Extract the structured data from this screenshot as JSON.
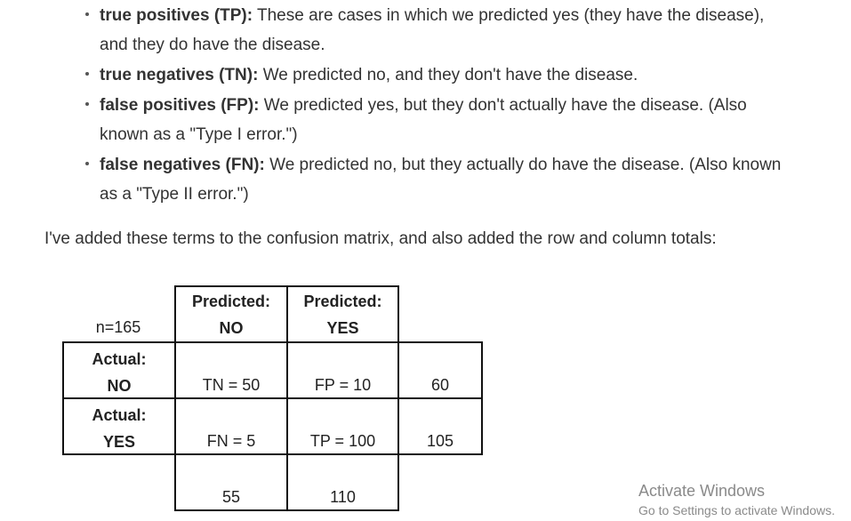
{
  "definitions": [
    {
      "term": "true positives (TP):",
      "line1": " These are cases in which we predicted yes (they have the disease),",
      "line2": "and they do have the disease."
    },
    {
      "term": "true negatives (TN):",
      "line1": " We predicted no, and they don't have the disease.",
      "line2": ""
    },
    {
      "term": "false positives (FP):",
      "line1": " We predicted yes, but they don't actually have the disease. (Also",
      "line2": "known as a \"Type I error.\")"
    },
    {
      "term": "false negatives (FN):",
      "line1": " We predicted no, but they actually do have the disease. (Also known",
      "line2": "as a \"Type II error.\")"
    }
  ],
  "intro": "I've added these terms to the confusion matrix, and also added the row and column totals:",
  "matrix": {
    "n_label": "n=165",
    "col_headers": [
      {
        "line1": "Predicted:",
        "line2": "NO"
      },
      {
        "line1": "Predicted:",
        "line2": "YES"
      }
    ],
    "row_headers": [
      {
        "line1": "Actual:",
        "line2": "NO"
      },
      {
        "line1": "Actual:",
        "line2": "YES"
      }
    ],
    "cells": [
      [
        "TN = 50",
        "FP = 10"
      ],
      [
        "FN = 5",
        "TP = 100"
      ]
    ],
    "row_totals": [
      "60",
      "105"
    ],
    "col_totals": [
      "55",
      "110"
    ]
  },
  "watermark": {
    "title": "Activate Windows",
    "subtitle": "Go to Settings to activate Windows."
  }
}
